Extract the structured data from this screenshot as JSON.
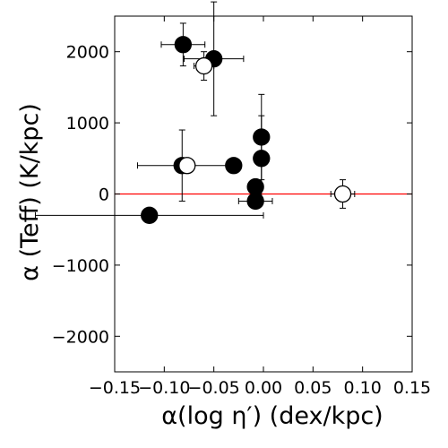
{
  "chart_data": {
    "type": "scatter",
    "xlabel": "α(log η′) (dex/kpc)",
    "ylabel": "α (Teff) (K/kpc)",
    "xlim": [
      -0.15,
      0.15
    ],
    "ylim": [
      -2500,
      2500
    ],
    "x_ticks": [
      -0.15,
      -0.1,
      -0.05,
      0.0,
      0.05,
      0.1,
      0.15
    ],
    "x_tick_labels": [
      "−0.15",
      "−0.10",
      "−0.05",
      "0.00",
      "0.05",
      "0.10",
      "0.15"
    ],
    "y_ticks": [
      -2000,
      -1000,
      0,
      1000,
      2000
    ],
    "y_tick_labels": [
      "−2000",
      "−1000",
      "0",
      "1000",
      "2000"
    ],
    "reference_line": {
      "y": 0,
      "color": "#ff0000"
    },
    "marker_colors": {
      "filled": "#000000",
      "open": "#ffffff",
      "edge": "#000000"
    },
    "series": [
      {
        "marker": "filled",
        "points": [
          {
            "x": -0.081,
            "y": 2100,
            "xerr": 0.022,
            "yerr": 300
          },
          {
            "x": -0.05,
            "y": 1900,
            "xerr": 0.03,
            "yerr": 800
          },
          {
            "x": -0.082,
            "y": 400,
            "xerr": 0.045,
            "yerr": 500
          },
          {
            "x": -0.03,
            "y": 400,
            "xerr": 0.0,
            "yerr": 0
          },
          {
            "x": -0.002,
            "y": 800,
            "xerr": 0.0,
            "yerr": 600
          },
          {
            "x": -0.002,
            "y": 500,
            "xerr": 0.0,
            "yerr": 600
          },
          {
            "x": -0.008,
            "y": 100,
            "xerr": 0.0,
            "yerr": 0
          },
          {
            "x": -0.008,
            "y": -100,
            "xerr": 0.017,
            "yerr": 0
          },
          {
            "x": -0.115,
            "y": -300,
            "xerr": 0.115,
            "yerr": 0
          }
        ]
      },
      {
        "marker": "open",
        "points": [
          {
            "x": -0.06,
            "y": 1800,
            "xerr": 0.01,
            "yerr": 200
          },
          {
            "x": -0.077,
            "y": 400,
            "xerr": 0.0,
            "yerr": 0
          },
          {
            "x": 0.08,
            "y": 0,
            "xerr": 0.012,
            "yerr": 200
          }
        ]
      }
    ]
  }
}
